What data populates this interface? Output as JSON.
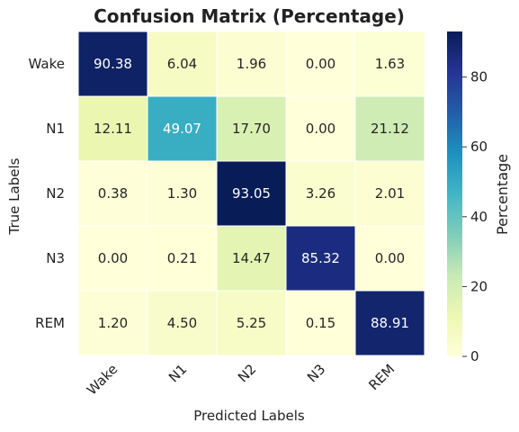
{
  "chart_data": {
    "type": "heatmap",
    "title": "Confusion Matrix (Percentage)",
    "xlabel": "Predicted Labels",
    "ylabel": "True Labels",
    "x_categories": [
      "Wake",
      "N1",
      "N2",
      "N3",
      "REM"
    ],
    "y_categories": [
      "Wake",
      "N1",
      "N2",
      "N3",
      "REM"
    ],
    "values": [
      [
        90.38,
        6.04,
        1.96,
        0.0,
        1.63
      ],
      [
        12.11,
        49.07,
        17.7,
        0.0,
        21.12
      ],
      [
        0.38,
        1.3,
        93.05,
        3.26,
        2.01
      ],
      [
        0.0,
        0.21,
        14.47,
        85.32,
        0.0
      ],
      [
        1.2,
        4.5,
        5.25,
        0.15,
        88.91
      ]
    ],
    "colormap": "YlGnBu",
    "vmin": 0,
    "vmax": 93.05,
    "colorbar": {
      "label": "Percentage",
      "ticks": [
        0,
        20,
        40,
        60,
        80
      ]
    }
  }
}
